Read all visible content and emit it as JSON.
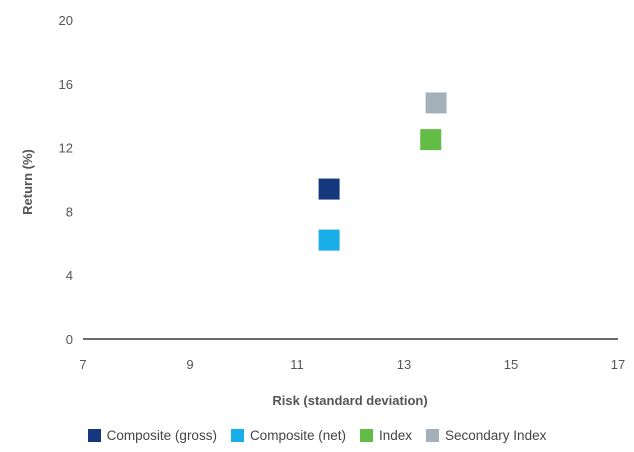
{
  "chart_data": {
    "type": "scatter",
    "xlabel": "Risk (standard deviation)",
    "ylabel": "Return (%)",
    "xlim": [
      7,
      17
    ],
    "ylim": [
      0,
      20
    ],
    "xticks": [
      "7",
      "9",
      "11",
      "13",
      "15",
      "17"
    ],
    "yticks": [
      "0",
      "4",
      "8",
      "12",
      "16",
      "20"
    ],
    "grid": false,
    "legend_position": "bottom",
    "marker": "square",
    "series": [
      {
        "name": "Composite (gross)",
        "color": "#14377d",
        "x": 11.6,
        "y": 9.4
      },
      {
        "name": "Composite (net)",
        "color": "#19aee8",
        "x": 11.6,
        "y": 6.2
      },
      {
        "name": "Index",
        "color": "#63bc46",
        "x": 13.5,
        "y": 12.5
      },
      {
        "name": "Secondary Index",
        "color": "#a3b0ba",
        "x": 13.6,
        "y": 14.8
      }
    ]
  }
}
